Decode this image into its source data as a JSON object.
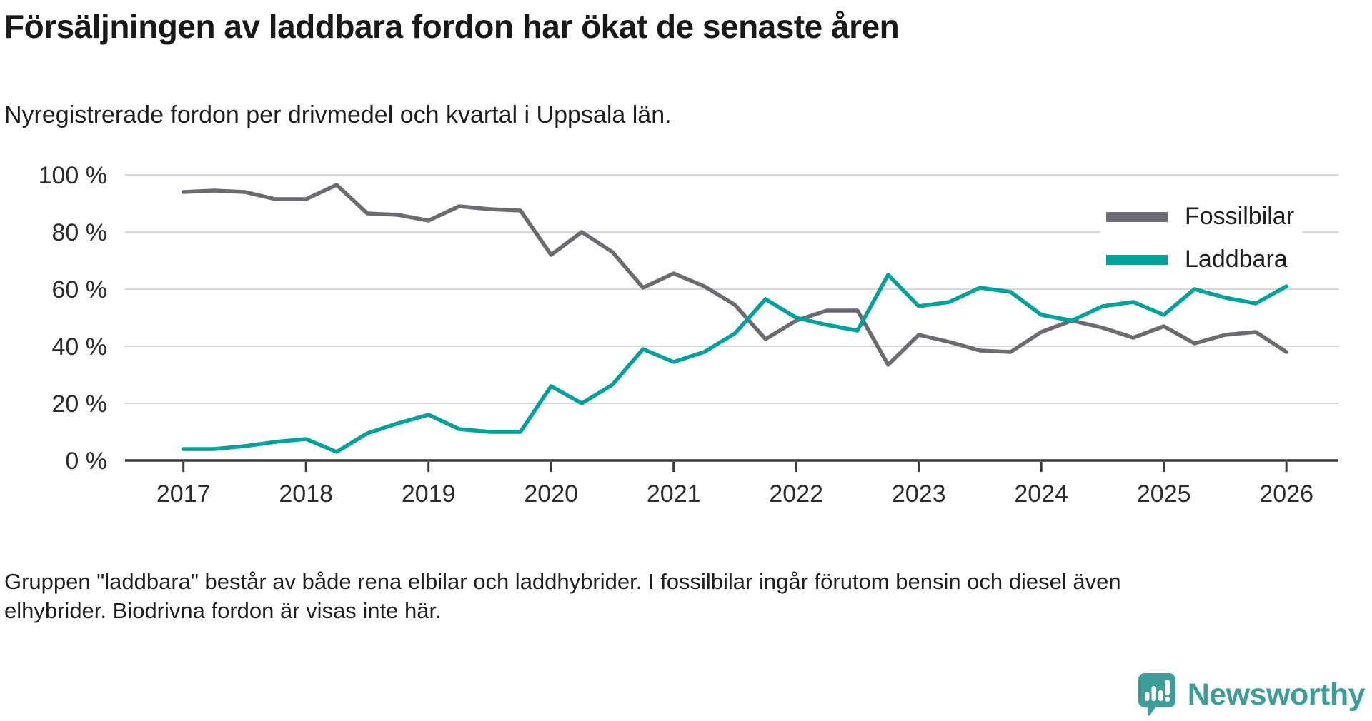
{
  "header": {
    "title": "Försäljningen av laddbara fordon har ökat de senaste åren",
    "subtitle": "Nyregistrerade fordon per drivmedel och kvartal i Uppsala län."
  },
  "chart_data": {
    "type": "line",
    "title": "Försäljningen av laddbara fordon har ökat de senaste åren",
    "subtitle": "Nyregistrerade fordon per drivmedel och kvartal i Uppsala län.",
    "x_unit": "quarter",
    "categories": [
      "2017 Q1",
      "2017 Q2",
      "2017 Q3",
      "2017 Q4",
      "2018 Q1",
      "2018 Q2",
      "2018 Q3",
      "2018 Q4",
      "2019 Q1",
      "2019 Q2",
      "2019 Q3",
      "2019 Q4",
      "2020 Q1",
      "2020 Q2",
      "2020 Q3",
      "2020 Q4",
      "2021 Q1",
      "2021 Q2",
      "2021 Q3",
      "2021 Q4",
      "2022 Q1",
      "2022 Q2",
      "2022 Q3",
      "2022 Q4",
      "2023 Q1",
      "2023 Q2",
      "2023 Q3",
      "2023 Q4",
      "2024 Q1",
      "2024 Q2",
      "2024 Q3",
      "2024 Q4",
      "2025 Q1",
      "2025 Q2",
      "2025 Q3",
      "2025 Q4",
      "2026 Q1"
    ],
    "series": [
      {
        "name": "Fossilbilar",
        "color": "#6d6a72",
        "values": [
          94,
          94.5,
          94,
          91.5,
          91.5,
          96.5,
          86.5,
          86,
          84,
          89,
          88,
          87.5,
          72,
          80,
          73,
          60.5,
          65.5,
          61,
          54.5,
          42.5,
          49,
          52.5,
          52.5,
          33.5,
          44,
          41.5,
          38.5,
          38,
          45,
          49,
          46.5,
          43,
          47,
          41,
          44,
          45,
          38
        ]
      },
      {
        "name": "Laddbara",
        "color": "#00a29b",
        "values": [
          4,
          4,
          5,
          6.5,
          7.5,
          3,
          9.5,
          13,
          16,
          11,
          10,
          10,
          26,
          20,
          26.5,
          39,
          34.5,
          38,
          44.5,
          56.5,
          50,
          47.5,
          45.5,
          65,
          54,
          55.5,
          60.5,
          59,
          51,
          49,
          54,
          55.5,
          51,
          60,
          57,
          55,
          61
        ]
      }
    ],
    "ylim": [
      0,
      100
    ],
    "yticks": [
      {
        "value": 0,
        "label": "0 %"
      },
      {
        "value": 20,
        "label": "20 %"
      },
      {
        "value": 40,
        "label": "40 %"
      },
      {
        "value": 60,
        "label": "60 %"
      },
      {
        "value": 80,
        "label": "80 %"
      },
      {
        "value": 100,
        "label": "100 %"
      }
    ],
    "xticks": [
      "2017",
      "2018",
      "2019",
      "2020",
      "2021",
      "2022",
      "2023",
      "2024",
      "2025",
      "2026"
    ],
    "grid": true,
    "legend_position": "top-right",
    "grid_color": "#d8d8d8",
    "axis_color": "#3a3a3a",
    "tick_label_color": "#2d2d2d"
  },
  "footer": {
    "line1": "Gruppen \"laddbara\" består av både rena elbilar och laddhybrider. I fossilbilar ingår förutom bensin och diesel även",
    "line2": "elhybrider. Biodrivna fordon är visas inte här."
  },
  "logo": {
    "text": "Newsworthy",
    "color": "#3b9e98",
    "icon": "newsworthy-speech-bubble-chart-icon"
  }
}
